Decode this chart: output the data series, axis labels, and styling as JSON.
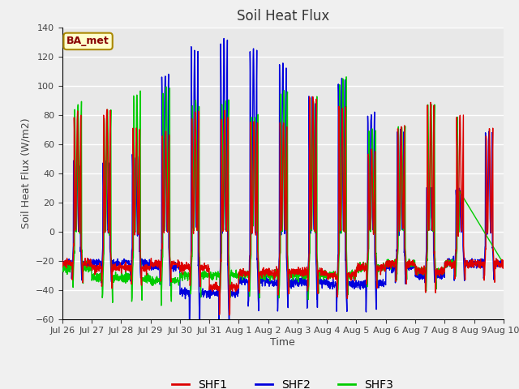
{
  "title": "Soil Heat Flux",
  "ylabel": "Soil Heat Flux (W/m2)",
  "xlabel": "Time",
  "ylim": [
    -60,
    140
  ],
  "yticks": [
    -60,
    -40,
    -20,
    0,
    20,
    40,
    60,
    80,
    100,
    120,
    140
  ],
  "fig_bg": "#f0f0f0",
  "axes_bg": "#e8e8e8",
  "grid_color": "white",
  "shf1_color": "#dd0000",
  "shf2_color": "#0000dd",
  "shf3_color": "#00cc00",
  "legend_label": "BA_met",
  "series_labels": [
    "SHF1",
    "SHF2",
    "SHF3"
  ],
  "x_tick_labels": [
    "Jul 26",
    "Jul 27",
    "Jul 28",
    "Jul 29",
    "Jul 30",
    "Jul 31",
    "Aug 1",
    "Aug 2",
    "Aug 3",
    "Aug 4",
    "Aug 5",
    "Aug 6",
    "Aug 7",
    "Aug 8",
    "Aug 9",
    "Aug 10"
  ],
  "line_width": 1.0,
  "days": 15,
  "pts_per_day": 144,
  "day_peaks_shf1": [
    80,
    83,
    70,
    68,
    82,
    80,
    75,
    75,
    92,
    86,
    56,
    73,
    88,
    79,
    70,
    73
  ],
  "day_peaks_shf2": [
    47,
    48,
    52,
    109,
    125,
    132,
    126,
    116,
    91,
    104,
    82,
    70,
    74,
    28,
    68,
    68
  ],
  "day_peaks_shf3": [
    88,
    83,
    95,
    99,
    89,
    90,
    80,
    99,
    91,
    104,
    70,
    73,
    89,
    79,
    20,
    0
  ],
  "day_troughs_shf1": [
    -22,
    -25,
    -25,
    -22,
    -25,
    -38,
    -28,
    -28,
    -28,
    -30,
    -25,
    -22,
    -27,
    -22,
    -22,
    -22
  ],
  "day_troughs_shf2": [
    -22,
    -22,
    -22,
    -24,
    -42,
    -42,
    -34,
    -35,
    -35,
    -36,
    -36,
    -24,
    -30,
    -22,
    -22,
    -22
  ],
  "day_troughs_shf3": [
    -25,
    -32,
    -32,
    -34,
    -30,
    -30,
    -30,
    -30,
    -30,
    -30,
    -25,
    -22,
    -27,
    -22,
    -22,
    -22
  ]
}
